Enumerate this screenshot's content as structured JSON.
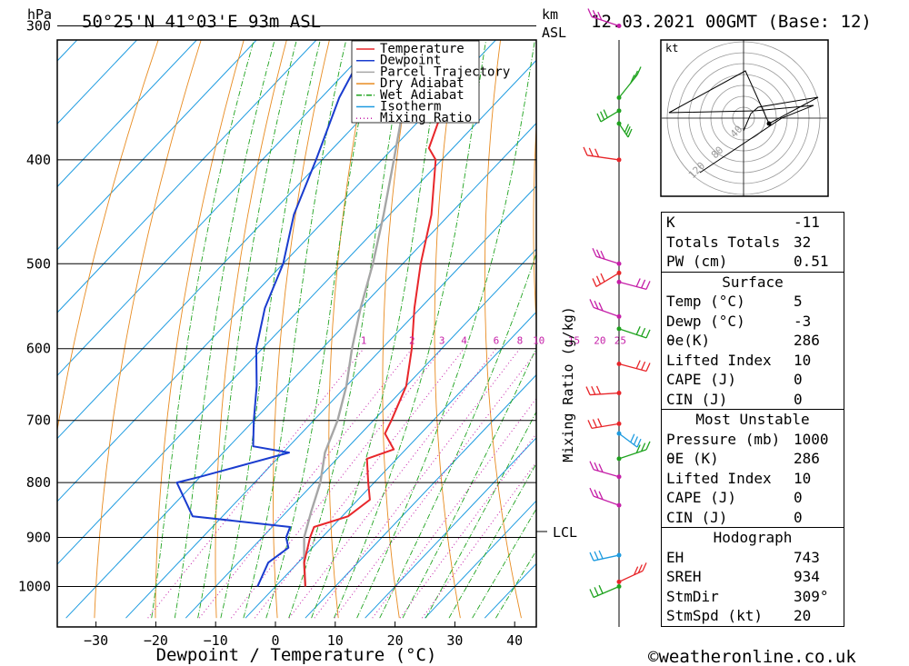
{
  "header": {
    "location": "50°25'N  41°03'E  93m  ASL",
    "hpa_unit": "hPa",
    "km_unit": "km",
    "asl_unit": "ASL",
    "datetime": "12.03.2021  00GMT  (Base: 12)"
  },
  "chart_data": {
    "type": "line",
    "title": "50°25'N  41°03'E  93m  ASL",
    "xlabel": "Dewpoint / Temperature (°C)",
    "ylabel": "hPa",
    "x_ticks": [
      -30,
      -20,
      -10,
      0,
      10,
      20,
      30,
      40
    ],
    "y_ticks": [
      300,
      400,
      500,
      600,
      700,
      800,
      900,
      1000
    ],
    "ylim": [
      1070,
      300
    ],
    "xlim_at_1000hPa": [
      -38,
      43
    ],
    "y_scale": "log-pressure",
    "x_skewed": true,
    "legend_placement": "top-right-of-plot",
    "legend": [
      {
        "name": "Temperature",
        "color": "#e8262a",
        "style": "solid"
      },
      {
        "name": "Dewpoint",
        "color": "#1a3ccf",
        "style": "solid"
      },
      {
        "name": "Parcel Trajectory",
        "color": "#a6a6a6",
        "style": "solid"
      },
      {
        "name": "Dry Adiabat",
        "color": "#e88b20",
        "style": "solid"
      },
      {
        "name": "Wet Adiabat",
        "color": "#1fa31f",
        "style": "dash-dot"
      },
      {
        "name": "Isotherm",
        "color": "#1d9be0",
        "style": "solid"
      },
      {
        "name": "Mixing Ratio",
        "color": "#c51fa8",
        "style": "dotted"
      }
    ],
    "mixing_ratio_labels": [
      "1",
      "2",
      "3",
      "4",
      "6",
      "8",
      "10",
      "15",
      "20",
      "25"
    ],
    "mixing_ratio_values": [
      1,
      2,
      3,
      4,
      6,
      8,
      10,
      15,
      20,
      25
    ],
    "mixing_ratio_axis_label": "Mixing Ratio (g/kg)",
    "series": [
      {
        "name": "Temperature",
        "color": "#e8262a",
        "points": [
          [
            1000,
            5
          ],
          [
            950,
            1
          ],
          [
            900,
            -2
          ],
          [
            880,
            -3
          ],
          [
            860,
            1
          ],
          [
            830,
            2
          ],
          [
            800,
            -1
          ],
          [
            760,
            -5
          ],
          [
            745,
            -2
          ],
          [
            720,
            -6
          ],
          [
            700,
            -7
          ],
          [
            650,
            -10
          ],
          [
            600,
            -15
          ],
          [
            550,
            -21
          ],
          [
            500,
            -27
          ],
          [
            450,
            -33
          ],
          [
            400,
            -41
          ],
          [
            390,
            -44
          ],
          [
            350,
            -49
          ],
          [
            300,
            -57
          ]
        ]
      },
      {
        "name": "Dewpoint",
        "color": "#1a3ccf",
        "points": [
          [
            1000,
            -3
          ],
          [
            950,
            -5
          ],
          [
            920,
            -4
          ],
          [
            900,
            -6
          ],
          [
            880,
            -7
          ],
          [
            860,
            -25
          ],
          [
            800,
            -33
          ],
          [
            790,
            -30
          ],
          [
            750,
            -19
          ],
          [
            740,
            -26
          ],
          [
            700,
            -30
          ],
          [
            650,
            -35
          ],
          [
            600,
            -41
          ],
          [
            550,
            -46
          ],
          [
            500,
            -50
          ],
          [
            450,
            -56
          ],
          [
            400,
            -61
          ],
          [
            350,
            -67
          ],
          [
            300,
            -72
          ]
        ]
      },
      {
        "name": "Parcel Trajectory",
        "color": "#a6a6a6",
        "points": [
          [
            1000,
            5
          ],
          [
            950,
            1
          ],
          [
            900,
            -3
          ],
          [
            850,
            -6
          ],
          [
            800,
            -9
          ],
          [
            750,
            -13
          ],
          [
            700,
            -16
          ],
          [
            650,
            -20
          ],
          [
            600,
            -25
          ],
          [
            550,
            -30
          ],
          [
            500,
            -35
          ],
          [
            450,
            -41
          ],
          [
            400,
            -48
          ],
          [
            350,
            -56
          ],
          [
            300,
            -64
          ]
        ]
      }
    ],
    "lcl": {
      "label": "LCL",
      "pressure": 888
    },
    "hodograph": {
      "unit": "kt",
      "ring_labels": [
        "40",
        "80",
        "120"
      ]
    }
  },
  "table": {
    "top": [
      {
        "label": "K",
        "value": "-11"
      },
      {
        "label": "Totals Totals",
        "value": "32"
      },
      {
        "label": "PW (cm)",
        "value": "0.51"
      }
    ],
    "surface": {
      "title": "Surface",
      "rows": [
        {
          "label": "Temp (°C)",
          "value": "5"
        },
        {
          "label": "Dewp (°C)",
          "value": "-3"
        },
        {
          "label": "θe(K)",
          "value": "286"
        },
        {
          "label": "Lifted Index",
          "value": "10"
        },
        {
          "label": "CAPE (J)",
          "value": "0"
        },
        {
          "label": "CIN (J)",
          "value": "0"
        }
      ]
    },
    "unstable": {
      "title": "Most Unstable",
      "rows": [
        {
          "label": "Pressure (mb)",
          "value": "1000"
        },
        {
          "label": "θE (K)",
          "value": "286"
        },
        {
          "label": "Lifted Index",
          "value": "10"
        },
        {
          "label": "CAPE (J)",
          "value": "0"
        },
        {
          "label": "CIN (J)",
          "value": "0"
        }
      ]
    },
    "hodograph": {
      "title": "Hodograph",
      "rows": [
        {
          "label": "EH",
          "value": "743"
        },
        {
          "label": "SREH",
          "value": "934"
        },
        {
          "label": "StmDir",
          "value": "309°"
        },
        {
          "label": "StmSpd (kt)",
          "value": "20"
        }
      ]
    }
  },
  "footer": {
    "copyright": "©weatheronline.co.uk"
  },
  "colors": {
    "temperature": "#e8262a",
    "dewpoint": "#1a3ccf",
    "parcel": "#a6a6a6",
    "dry": "#e88b20",
    "wet": "#1fa31f",
    "iso": "#1d9be0",
    "mix": "#c51fa8"
  }
}
